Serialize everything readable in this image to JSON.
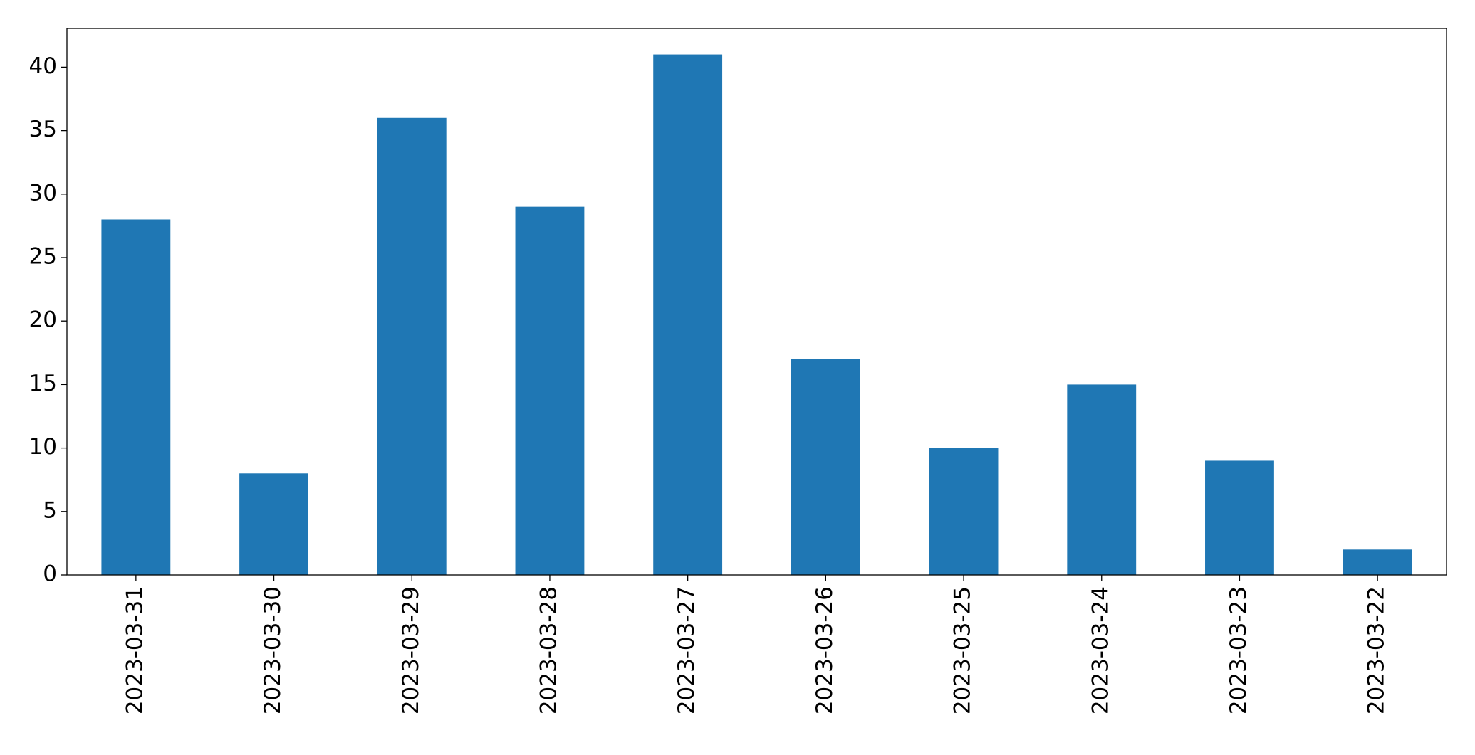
{
  "chart_data": {
    "type": "bar",
    "categories": [
      "2023-03-31",
      "2023-03-30",
      "2023-03-29",
      "2023-03-28",
      "2023-03-27",
      "2023-03-26",
      "2023-03-25",
      "2023-03-24",
      "2023-03-23",
      "2023-03-22"
    ],
    "values": [
      28,
      8,
      36,
      29,
      41,
      17,
      10,
      15,
      9,
      2
    ],
    "color": "#1f77b4",
    "ylim": [
      0,
      43.05
    ],
    "yticks": [
      0,
      5,
      10,
      15,
      20,
      25,
      30,
      35,
      40
    ],
    "grid": false
  }
}
